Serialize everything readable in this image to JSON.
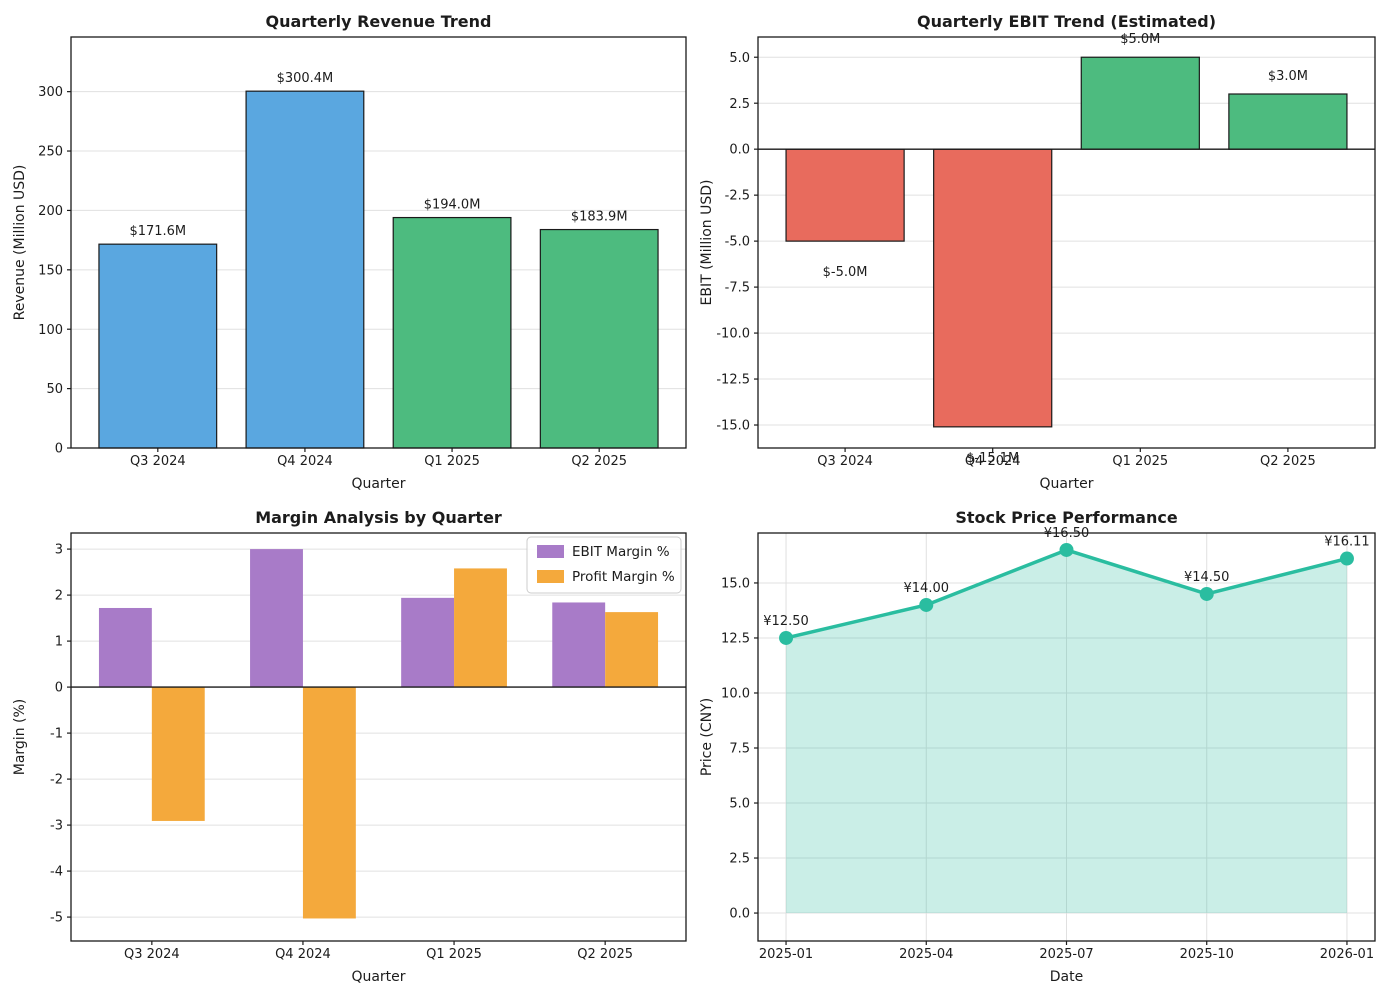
{
  "figure": {
    "background": "#ffffff",
    "text_color": "#1c1c1c",
    "spine_color": "#1a1a1a",
    "grid_color": "#e0e0e0"
  },
  "chart_data": [
    {
      "type": "bar",
      "title": "Quarterly Revenue Trend",
      "xlabel": "Quarter",
      "ylabel": "Revenue (Million USD)",
      "categories": [
        "Q3 2024",
        "Q4 2024",
        "Q1 2025",
        "Q2 2025"
      ],
      "values": [
        171.6,
        300.4,
        194.0,
        183.9
      ],
      "value_labels": [
        "$171.6M",
        "$300.4M",
        "$194.0M",
        "$183.9M"
      ],
      "bar_colors": [
        "#5aa7e0",
        "#5aa7e0",
        "#4dbb7f",
        "#4dbb7f"
      ],
      "bar_edge_color": "#1a1a1a",
      "ylim": [
        0,
        346
      ],
      "ytick_values": [
        0,
        50,
        100,
        150,
        200,
        250,
        300
      ],
      "ytick_labels": [
        "0",
        "50",
        "100",
        "150",
        "200",
        "250",
        "300"
      ],
      "grid": "y",
      "zero_line": false,
      "legend": null
    },
    {
      "type": "bar",
      "title": "Quarterly EBIT Trend (Estimated)",
      "xlabel": "Quarter",
      "ylabel": "EBIT (Million USD)",
      "categories": [
        "Q3 2024",
        "Q4 2024",
        "Q1 2025",
        "Q2 2025"
      ],
      "values": [
        -5.0,
        -15.1,
        5.0,
        3.0
      ],
      "value_labels": [
        "$-5.0M",
        "$-15.1M",
        "$5.0M",
        "$3.0M"
      ],
      "bar_colors": [
        "#e86b5d",
        "#e86b5d",
        "#4dbb7f",
        "#4dbb7f"
      ],
      "bar_edge_color": "#1a1a1a",
      "ylim": [
        -16.25,
        6.1
      ],
      "ytick_values": [
        5.0,
        2.5,
        0.0,
        -2.5,
        -5.0,
        -7.5,
        -10.0,
        -12.5,
        -15.0
      ],
      "ytick_labels": [
        "5.0",
        "2.5",
        "0.0",
        "-2.5",
        "-5.0",
        "-7.5",
        "-10.0",
        "-12.5",
        "-15.0"
      ],
      "grid": "y",
      "zero_line": true,
      "legend": null
    },
    {
      "type": "grouped_bar",
      "title": "Margin Analysis by Quarter",
      "xlabel": "Quarter",
      "ylabel": "Margin (%)",
      "categories": [
        "Q3 2024",
        "Q4 2024",
        "Q1 2025",
        "Q2 2025"
      ],
      "series": [
        {
          "name": "EBIT Margin %",
          "color": "#a87bc8",
          "values": [
            1.72,
            3.0,
            1.94,
            1.84
          ]
        },
        {
          "name": "Profit Margin %",
          "color": "#f4a93c",
          "values": [
            -2.91,
            -5.03,
            2.58,
            1.63
          ]
        }
      ],
      "ylim": [
        -5.52,
        3.35
      ],
      "ytick_values": [
        3,
        2,
        1,
        0,
        -1,
        -2,
        -3,
        -4,
        -5
      ],
      "ytick_labels": [
        "3",
        "2",
        "1",
        "0",
        "-1",
        "-2",
        "-3",
        "-4",
        "-5"
      ],
      "grid": "y",
      "zero_line": true,
      "legend": {
        "position": "upper right"
      }
    },
    {
      "type": "line_area",
      "title": "Stock Price Performance",
      "xlabel": "Date",
      "ylabel": "Price (CNY)",
      "x": [
        "2025-01",
        "2025-04",
        "2025-07",
        "2025-10",
        "2026-01"
      ],
      "values": [
        12.5,
        14.0,
        16.5,
        14.5,
        16.11
      ],
      "value_labels": [
        "¥12.50",
        "¥14.00",
        "¥16.50",
        "¥14.50",
        "¥16.11"
      ],
      "line_color": "#2abda0",
      "fill_color": "#2abda0",
      "fill_opacity": 0.25,
      "ylim": [
        -1.27,
        17.27
      ],
      "ytick_values": [
        0.0,
        2.5,
        5.0,
        7.5,
        10.0,
        12.5,
        15.0
      ],
      "ytick_labels": [
        "0.0",
        "2.5",
        "5.0",
        "7.5",
        "10.0",
        "12.5",
        "15.0"
      ],
      "grid": "both",
      "zero_line": false,
      "legend": null
    }
  ]
}
